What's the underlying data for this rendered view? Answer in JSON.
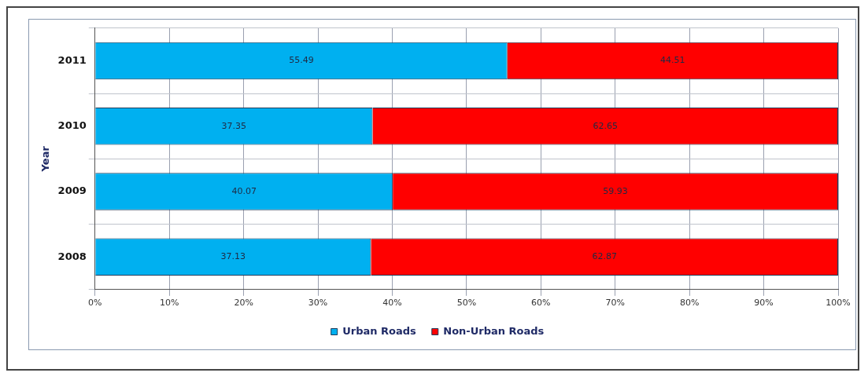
{
  "chart_data": {
    "type": "bar",
    "orientation": "horizontal",
    "stacked": true,
    "ylabel": "Year",
    "categories": [
      "2011",
      "2010",
      "2009",
      "2008"
    ],
    "series": [
      {
        "name": "Urban Roads",
        "color": "#00b0f0",
        "values": [
          55.49,
          37.35,
          40.07,
          37.13
        ]
      },
      {
        "name": "Non-Urban Roads",
        "color": "#ff0000",
        "values": [
          44.51,
          62.65,
          59.93,
          62.87
        ]
      }
    ],
    "xlim": [
      0,
      100
    ],
    "xticks": [
      {
        "value": 0,
        "label": "0%"
      },
      {
        "value": 10,
        "label": "10%"
      },
      {
        "value": 20,
        "label": "20%"
      },
      {
        "value": 30,
        "label": "30%"
      },
      {
        "value": 40,
        "label": "40%"
      },
      {
        "value": 50,
        "label": "50%"
      },
      {
        "value": 60,
        "label": "60%"
      },
      {
        "value": 70,
        "label": "70%"
      },
      {
        "value": 80,
        "label": "80%"
      },
      {
        "value": 90,
        "label": "90%"
      },
      {
        "value": 100,
        "label": "100%"
      }
    ],
    "grid": true,
    "legend": "bottom",
    "data_labels": true
  }
}
